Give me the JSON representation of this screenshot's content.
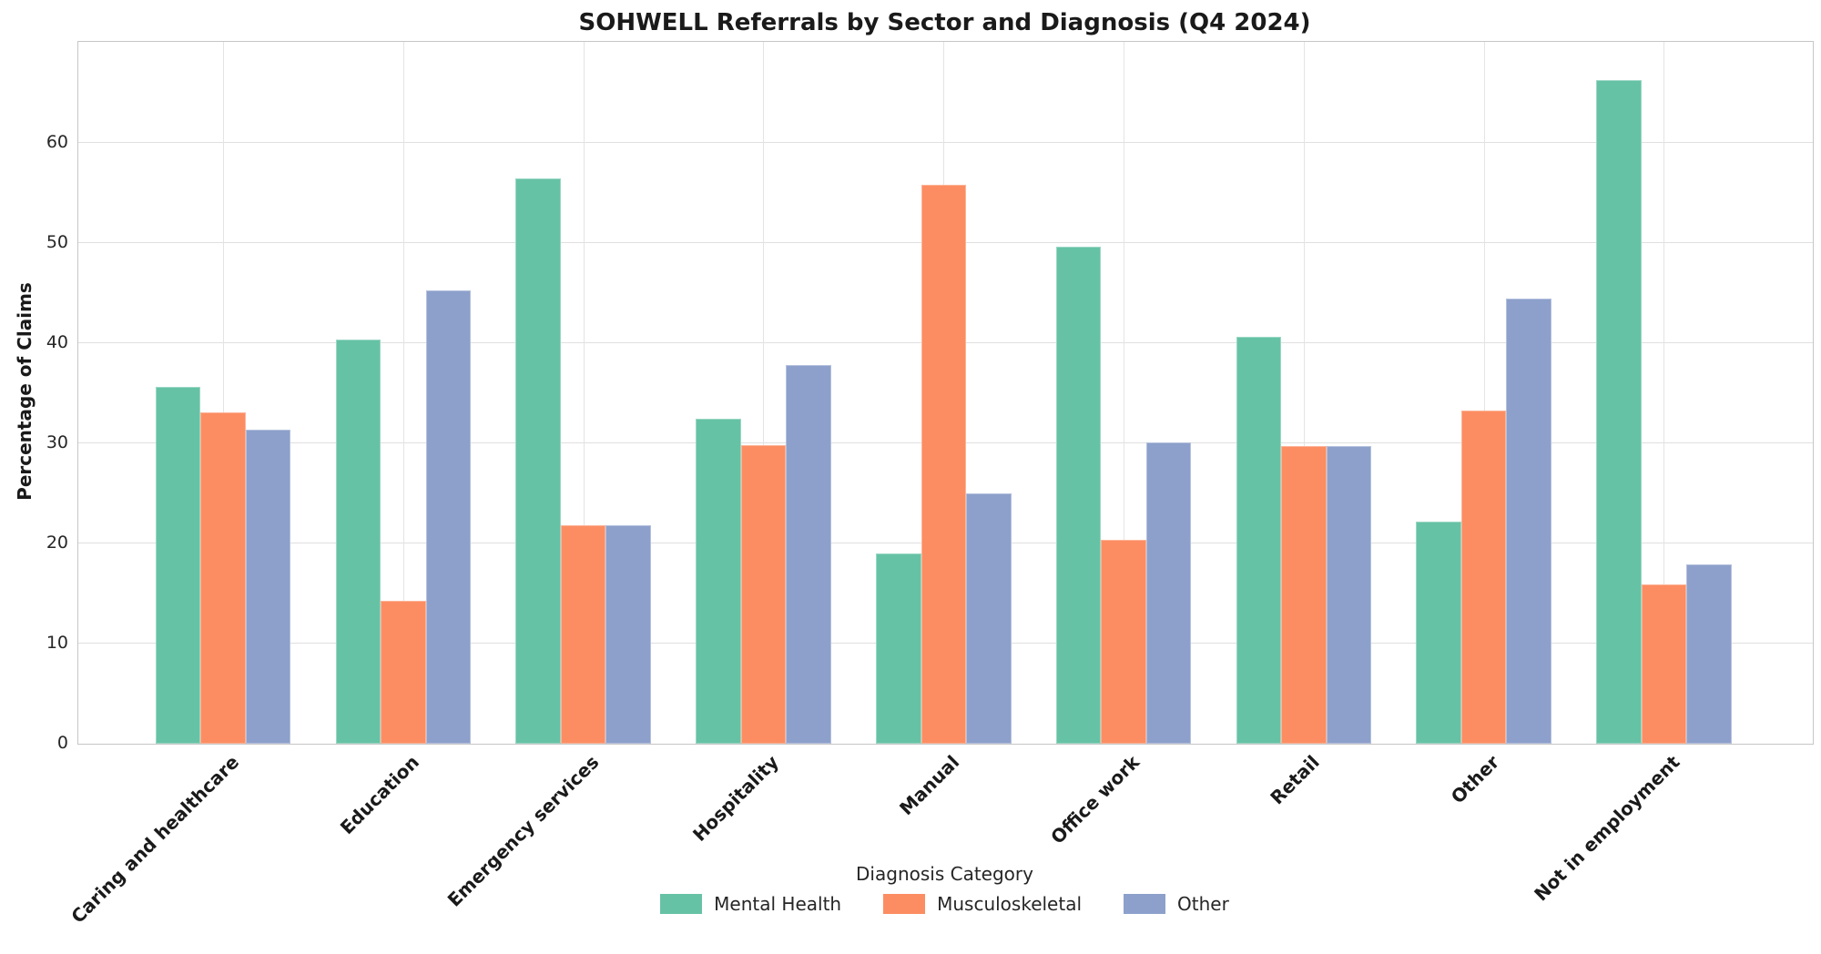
{
  "title": "SOHWELL Referrals by Sector and Diagnosis (Q4 2024)",
  "chart_data": {
    "type": "bar",
    "title": "SOHWELL Referrals by Sector and Diagnosis (Q4 2024)",
    "ylabel": "Percentage of Claims",
    "xlabel": "",
    "legend_title": "Diagnosis Category",
    "legend_position": "bottom-center",
    "grid": true,
    "ylim": [
      0,
      70
    ],
    "yticks": [
      0,
      10,
      20,
      30,
      40,
      50,
      60
    ],
    "categories": [
      "Caring and healthcare",
      "Education",
      "Emergency services",
      "Hospitality",
      "Manual",
      "Office work",
      "Retail",
      "Other",
      "Not in employment"
    ],
    "series": [
      {
        "name": "Mental Health",
        "color": "#66c2a5",
        "values": [
          35.6,
          40.4,
          56.5,
          32.5,
          19.0,
          49.6,
          40.6,
          22.2,
          66.3
        ]
      },
      {
        "name": "Musculoskeletal",
        "color": "#fc8d62",
        "values": [
          33.1,
          14.3,
          21.8,
          29.8,
          55.8,
          20.4,
          29.7,
          33.3,
          15.9
        ]
      },
      {
        "name": "Other",
        "color": "#8da0cb",
        "values": [
          31.4,
          45.3,
          21.8,
          37.8,
          25.0,
          30.1,
          29.7,
          44.5,
          17.9
        ]
      }
    ]
  }
}
